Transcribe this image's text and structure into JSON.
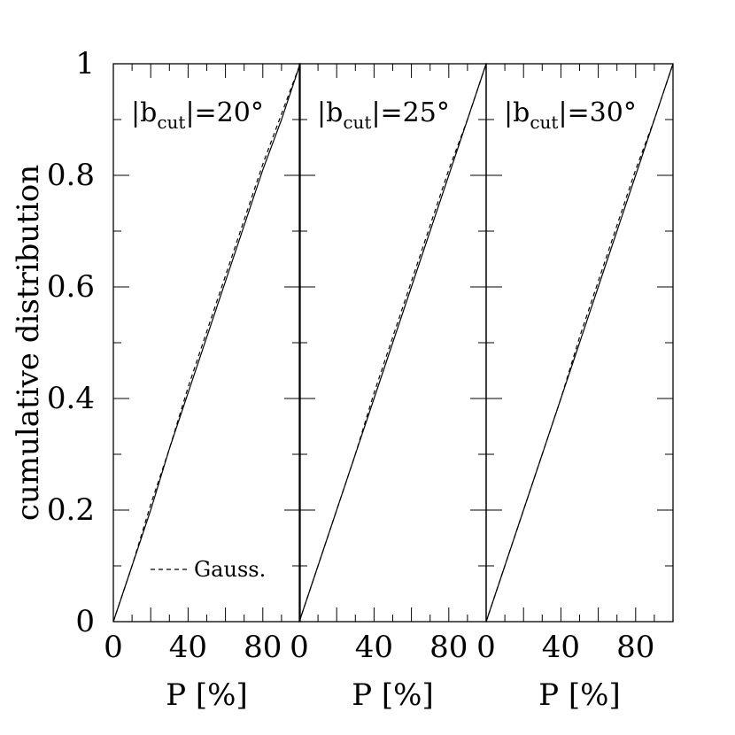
{
  "chart_data": {
    "type": "line",
    "ylabel": "cumulative distribution",
    "ylim": [
      0,
      1
    ],
    "y_ticks": [
      "0",
      "0.2",
      "0.4",
      "0.6",
      "0.8",
      "1"
    ],
    "y_tick_values": [
      0,
      0.2,
      0.4,
      0.6,
      0.8,
      1
    ],
    "legend": {
      "label": "Gauss.",
      "style": "dashed",
      "placement": "bottom-right of first panel"
    },
    "panels": [
      {
        "label_prefix": "|b",
        "label_sub": "cut",
        "label_suffix": "|=20°",
        "xlabel": "P [%]",
        "xlim": [
          0,
          100
        ],
        "x_ticks": [
          "0",
          "40",
          "80"
        ],
        "x_tick_values": [
          0,
          40,
          80
        ],
        "series": [
          {
            "style": "solid",
            "x": [
              0,
              10,
              20,
              30,
              40,
              50,
              60,
              70,
              80,
              90,
              100
            ],
            "y": [
              0,
              0.1,
              0.2,
              0.31,
              0.41,
              0.51,
              0.61,
              0.71,
              0.81,
              0.9,
              1.0
            ]
          },
          {
            "name": "Gauss.",
            "style": "dashed",
            "x": [
              0,
              10,
              20,
              30,
              40,
              50,
              60,
              70,
              80,
              90,
              100
            ],
            "y": [
              0,
              0.1,
              0.21,
              0.31,
              0.42,
              0.52,
              0.62,
              0.72,
              0.82,
              0.91,
              1.0
            ]
          }
        ]
      },
      {
        "label_prefix": "|b",
        "label_sub": "cut",
        "label_suffix": "|=25°",
        "xlabel": "P [%]",
        "xlim": [
          0,
          100
        ],
        "x_ticks": [
          "0",
          "40",
          "80"
        ],
        "x_tick_values": [
          0,
          40,
          80
        ],
        "series": [
          {
            "style": "solid",
            "x": [
              0,
              10,
              20,
              30,
              40,
              50,
              60,
              70,
              80,
              90,
              100
            ],
            "y": [
              0,
              0.1,
              0.2,
              0.3,
              0.4,
              0.5,
              0.6,
              0.7,
              0.8,
              0.9,
              1.0
            ]
          },
          {
            "name": "Gauss.",
            "style": "dashed",
            "x": [
              0,
              10,
              20,
              30,
              40,
              50,
              60,
              70,
              80,
              90,
              100
            ],
            "y": [
              0,
              0.1,
              0.2,
              0.3,
              0.41,
              0.51,
              0.61,
              0.71,
              0.81,
              0.9,
              1.0
            ]
          }
        ]
      },
      {
        "label_prefix": "|b",
        "label_sub": "cut",
        "label_suffix": "|=30°",
        "xlabel": "P [%]",
        "xlim": [
          0,
          100
        ],
        "x_ticks": [
          "0",
          "40",
          "80"
        ],
        "x_tick_values": [
          0,
          40,
          80
        ],
        "series": [
          {
            "style": "solid",
            "x": [
              0,
              10,
              20,
              30,
              40,
              50,
              60,
              70,
              80,
              90,
              100
            ],
            "y": [
              0,
              0.1,
              0.2,
              0.3,
              0.4,
              0.5,
              0.6,
              0.7,
              0.8,
              0.9,
              1.0
            ]
          },
          {
            "name": "Gauss.",
            "style": "dashed",
            "x": [
              0,
              10,
              20,
              30,
              40,
              50,
              60,
              70,
              80,
              90,
              100
            ],
            "y": [
              0,
              0.1,
              0.2,
              0.3,
              0.4,
              0.51,
              0.61,
              0.71,
              0.81,
              0.9,
              1.0
            ]
          }
        ]
      }
    ]
  }
}
